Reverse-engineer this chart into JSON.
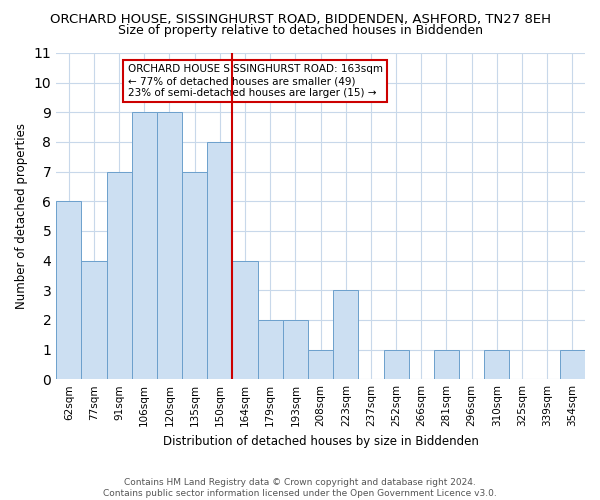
{
  "title_line1": "ORCHARD HOUSE, SISSINGHURST ROAD, BIDDENDEN, ASHFORD, TN27 8EH",
  "title_line2": "Size of property relative to detached houses in Biddenden",
  "xlabel": "Distribution of detached houses by size in Biddenden",
  "ylabel": "Number of detached properties",
  "bin_labels": [
    "62sqm",
    "77sqm",
    "91sqm",
    "106sqm",
    "120sqm",
    "135sqm",
    "150sqm",
    "164sqm",
    "179sqm",
    "193sqm",
    "208sqm",
    "223sqm",
    "237sqm",
    "252sqm",
    "266sqm",
    "281sqm",
    "296sqm",
    "310sqm",
    "325sqm",
    "339sqm",
    "354sqm"
  ],
  "bar_heights": [
    6,
    4,
    7,
    9,
    9,
    7,
    8,
    4,
    2,
    2,
    1,
    3,
    0,
    1,
    0,
    1,
    0,
    1,
    0,
    0,
    1
  ],
  "bar_color": "#ccdff2",
  "bar_edge_color": "#6ca0cc",
  "reference_line_color": "#cc0000",
  "annotation_text": "ORCHARD HOUSE SISSINGHURST ROAD: 163sqm\n← 77% of detached houses are smaller (49)\n23% of semi-detached houses are larger (15) →",
  "annotation_box_color": "#ffffff",
  "annotation_border_color": "#cc0000",
  "ylim": [
    0,
    11
  ],
  "yticks": [
    0,
    1,
    2,
    3,
    4,
    5,
    6,
    7,
    8,
    9,
    10,
    11
  ],
  "footer_text": "Contains HM Land Registry data © Crown copyright and database right 2024.\nContains public sector information licensed under the Open Government Licence v3.0.",
  "bg_color": "#ffffff",
  "grid_color": "#c8d8ea"
}
